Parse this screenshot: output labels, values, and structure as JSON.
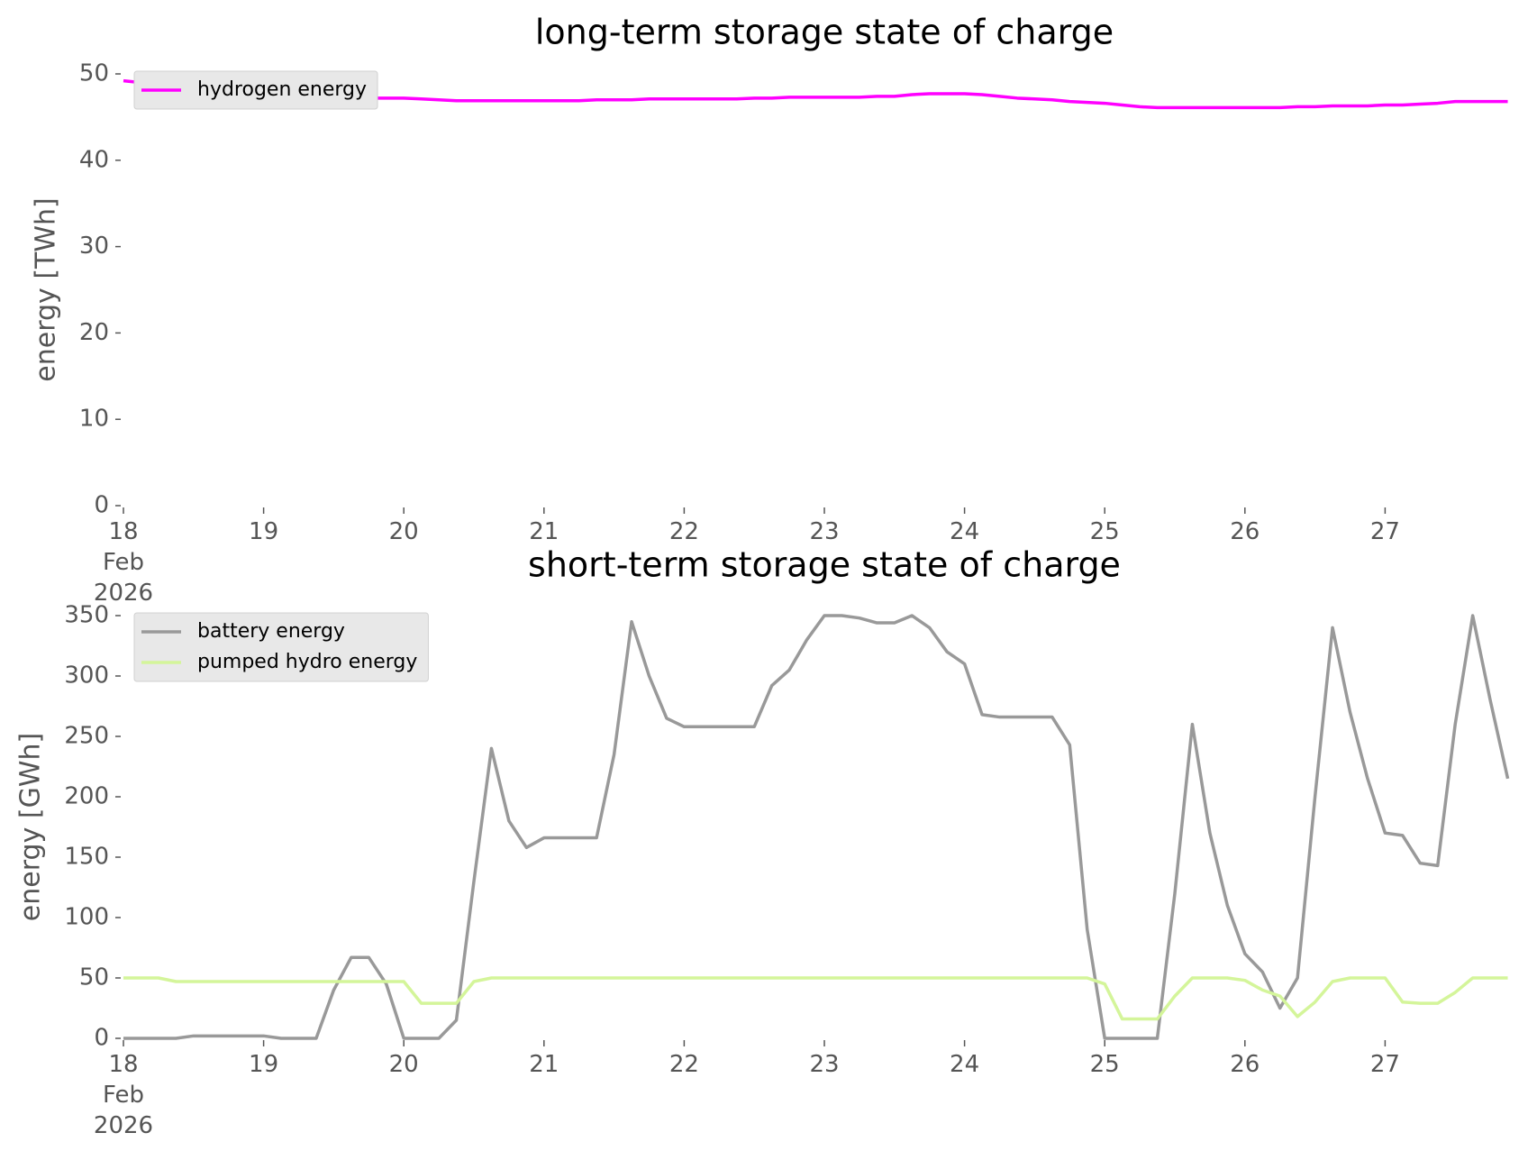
{
  "chart_data": [
    {
      "type": "line",
      "title": "long-term storage state of charge",
      "ylabel": "energy [TWh]",
      "legend": "upper left",
      "xlim": [
        "2026-02-18T00:00",
        "2026-02-28T00:00"
      ],
      "ylim": [
        0,
        50
      ],
      "yticks": [
        0,
        10,
        20,
        30,
        40,
        50
      ],
      "xticks": [
        {
          "value": "2026-02-18T00:00",
          "label": "18\nFeb\n2026"
        },
        {
          "value": "2026-02-19T00:00",
          "label": "19"
        },
        {
          "value": "2026-02-20T00:00",
          "label": "20"
        },
        {
          "value": "2026-02-21T00:00",
          "label": "21"
        },
        {
          "value": "2026-02-22T00:00",
          "label": "22"
        },
        {
          "value": "2026-02-23T00:00",
          "label": "23"
        },
        {
          "value": "2026-02-24T00:00",
          "label": "24"
        },
        {
          "value": "2026-02-25T00:00",
          "label": "25"
        },
        {
          "value": "2026-02-26T00:00",
          "label": "26"
        },
        {
          "value": "2026-02-27T00:00",
          "label": "27"
        }
      ],
      "x": [
        "2026-02-18T00:00",
        "2026-02-18T03:00",
        "2026-02-18T06:00",
        "2026-02-18T09:00",
        "2026-02-18T12:00",
        "2026-02-18T15:00",
        "2026-02-18T18:00",
        "2026-02-18T21:00",
        "2026-02-19T00:00",
        "2026-02-19T03:00",
        "2026-02-19T06:00",
        "2026-02-19T09:00",
        "2026-02-19T12:00",
        "2026-02-19T15:00",
        "2026-02-19T18:00",
        "2026-02-19T21:00",
        "2026-02-20T00:00",
        "2026-02-20T03:00",
        "2026-02-20T06:00",
        "2026-02-20T09:00",
        "2026-02-20T12:00",
        "2026-02-20T15:00",
        "2026-02-20T18:00",
        "2026-02-20T21:00",
        "2026-02-21T00:00",
        "2026-02-21T03:00",
        "2026-02-21T06:00",
        "2026-02-21T09:00",
        "2026-02-21T12:00",
        "2026-02-21T15:00",
        "2026-02-21T18:00",
        "2026-02-21T21:00",
        "2026-02-22T00:00",
        "2026-02-22T03:00",
        "2026-02-22T06:00",
        "2026-02-22T09:00",
        "2026-02-22T12:00",
        "2026-02-22T15:00",
        "2026-02-22T18:00",
        "2026-02-22T21:00",
        "2026-02-23T00:00",
        "2026-02-23T03:00",
        "2026-02-23T06:00",
        "2026-02-23T09:00",
        "2026-02-23T12:00",
        "2026-02-23T15:00",
        "2026-02-23T18:00",
        "2026-02-23T21:00",
        "2026-02-24T00:00",
        "2026-02-24T03:00",
        "2026-02-24T06:00",
        "2026-02-24T09:00",
        "2026-02-24T12:00",
        "2026-02-24T15:00",
        "2026-02-24T18:00",
        "2026-02-24T21:00",
        "2026-02-25T00:00",
        "2026-02-25T03:00",
        "2026-02-25T06:00",
        "2026-02-25T09:00",
        "2026-02-25T12:00",
        "2026-02-25T15:00",
        "2026-02-25T18:00",
        "2026-02-25T21:00",
        "2026-02-26T00:00",
        "2026-02-26T03:00",
        "2026-02-26T06:00",
        "2026-02-26T09:00",
        "2026-02-26T12:00",
        "2026-02-26T15:00",
        "2026-02-26T18:00",
        "2026-02-26T21:00",
        "2026-02-27T00:00",
        "2026-02-27T03:00",
        "2026-02-27T06:00",
        "2026-02-27T09:00",
        "2026-02-27T12:00",
        "2026-02-27T15:00",
        "2026-02-27T18:00",
        "2026-02-27T21:00"
      ],
      "series": [
        {
          "name": "hydrogen energy",
          "color": "#ff00ff",
          "values": [
            49.2,
            49.0,
            48.7,
            48.5,
            48.3,
            48.1,
            47.9,
            47.7,
            47.6,
            47.5,
            47.4,
            47.3,
            47.3,
            47.3,
            47.2,
            47.2,
            47.2,
            47.1,
            47.0,
            46.9,
            46.9,
            46.9,
            46.9,
            46.9,
            46.9,
            46.9,
            46.9,
            47.0,
            47.0,
            47.0,
            47.1,
            47.1,
            47.1,
            47.1,
            47.1,
            47.1,
            47.2,
            47.2,
            47.3,
            47.3,
            47.3,
            47.3,
            47.3,
            47.4,
            47.4,
            47.6,
            47.7,
            47.7,
            47.7,
            47.6,
            47.4,
            47.2,
            47.1,
            47.0,
            46.8,
            46.7,
            46.6,
            46.4,
            46.2,
            46.1,
            46.1,
            46.1,
            46.1,
            46.1,
            46.1,
            46.1,
            46.1,
            46.2,
            46.2,
            46.3,
            46.3,
            46.3,
            46.4,
            46.4,
            46.5,
            46.6,
            46.8,
            46.8,
            46.8,
            46.8
          ]
        }
      ]
    },
    {
      "type": "line",
      "title": "short-term storage state of charge",
      "ylabel": "energy [GWh]",
      "legend": "upper left",
      "xlim": [
        "2026-02-18T00:00",
        "2026-02-28T00:00"
      ],
      "ylim": [
        0,
        350
      ],
      "yticks": [
        0,
        50,
        100,
        150,
        200,
        250,
        300,
        350
      ],
      "xticks": [
        {
          "value": "2026-02-18T00:00",
          "label": "18\nFeb\n2026"
        },
        {
          "value": "2026-02-19T00:00",
          "label": "19"
        },
        {
          "value": "2026-02-20T00:00",
          "label": "20"
        },
        {
          "value": "2026-02-21T00:00",
          "label": "21"
        },
        {
          "value": "2026-02-22T00:00",
          "label": "22"
        },
        {
          "value": "2026-02-23T00:00",
          "label": "23"
        },
        {
          "value": "2026-02-24T00:00",
          "label": "24"
        },
        {
          "value": "2026-02-25T00:00",
          "label": "25"
        },
        {
          "value": "2026-02-26T00:00",
          "label": "26"
        },
        {
          "value": "2026-02-27T00:00",
          "label": "27"
        }
      ],
      "x": [
        "2026-02-18T00:00",
        "2026-02-18T03:00",
        "2026-02-18T06:00",
        "2026-02-18T09:00",
        "2026-02-18T12:00",
        "2026-02-18T15:00",
        "2026-02-18T18:00",
        "2026-02-18T21:00",
        "2026-02-19T00:00",
        "2026-02-19T03:00",
        "2026-02-19T06:00",
        "2026-02-19T09:00",
        "2026-02-19T12:00",
        "2026-02-19T15:00",
        "2026-02-19T18:00",
        "2026-02-19T21:00",
        "2026-02-20T00:00",
        "2026-02-20T03:00",
        "2026-02-20T06:00",
        "2026-02-20T09:00",
        "2026-02-20T12:00",
        "2026-02-20T15:00",
        "2026-02-20T18:00",
        "2026-02-20T21:00",
        "2026-02-21T00:00",
        "2026-02-21T03:00",
        "2026-02-21T06:00",
        "2026-02-21T09:00",
        "2026-02-21T12:00",
        "2026-02-21T15:00",
        "2026-02-21T18:00",
        "2026-02-21T21:00",
        "2026-02-22T00:00",
        "2026-02-22T03:00",
        "2026-02-22T06:00",
        "2026-02-22T09:00",
        "2026-02-22T12:00",
        "2026-02-22T15:00",
        "2026-02-22T18:00",
        "2026-02-22T21:00",
        "2026-02-23T00:00",
        "2026-02-23T03:00",
        "2026-02-23T06:00",
        "2026-02-23T09:00",
        "2026-02-23T12:00",
        "2026-02-23T15:00",
        "2026-02-23T18:00",
        "2026-02-23T21:00",
        "2026-02-24T00:00",
        "2026-02-24T03:00",
        "2026-02-24T06:00",
        "2026-02-24T09:00",
        "2026-02-24T12:00",
        "2026-02-24T15:00",
        "2026-02-24T18:00",
        "2026-02-24T21:00",
        "2026-02-25T00:00",
        "2026-02-25T03:00",
        "2026-02-25T06:00",
        "2026-02-25T09:00",
        "2026-02-25T12:00",
        "2026-02-25T15:00",
        "2026-02-25T18:00",
        "2026-02-25T21:00",
        "2026-02-26T00:00",
        "2026-02-26T03:00",
        "2026-02-26T06:00",
        "2026-02-26T09:00",
        "2026-02-26T12:00",
        "2026-02-26T15:00",
        "2026-02-26T18:00",
        "2026-02-26T21:00",
        "2026-02-27T00:00",
        "2026-02-27T03:00",
        "2026-02-27T06:00",
        "2026-02-27T09:00",
        "2026-02-27T12:00",
        "2026-02-27T15:00",
        "2026-02-27T18:00",
        "2026-02-27T21:00"
      ],
      "series": [
        {
          "name": "battery energy",
          "color": "#999999",
          "values": [
            0,
            0,
            0,
            0,
            2,
            2,
            2,
            2,
            2,
            0,
            0,
            0,
            40,
            67,
            67,
            45,
            0,
            0,
            0,
            15,
            130,
            240,
            180,
            158,
            166,
            166,
            166,
            166,
            235,
            345,
            300,
            265,
            258,
            258,
            258,
            258,
            258,
            292,
            305,
            330,
            350,
            350,
            348,
            344,
            344,
            350,
            340,
            320,
            310,
            268,
            266,
            266,
            266,
            266,
            243,
            90,
            0,
            0,
            0,
            0,
            120,
            260,
            170,
            110,
            70,
            55,
            25,
            50,
            200,
            340,
            270,
            215,
            170,
            168,
            145,
            143,
            260,
            350,
            280,
            215
          ]
        },
        {
          "name": "pumped hydro energy",
          "color": "#d4f59a",
          "values": [
            50,
            50,
            50,
            47,
            47,
            47,
            47,
            47,
            47,
            47,
            47,
            47,
            47,
            47,
            47,
            47,
            47,
            29,
            29,
            29,
            47,
            50,
            50,
            50,
            50,
            50,
            50,
            50,
            50,
            50,
            50,
            50,
            50,
            50,
            50,
            50,
            50,
            50,
            50,
            50,
            50,
            50,
            50,
            50,
            50,
            50,
            50,
            50,
            50,
            50,
            50,
            50,
            50,
            50,
            50,
            50,
            45,
            16,
            16,
            16,
            35,
            50,
            50,
            50,
            48,
            40,
            35,
            18,
            30,
            47,
            50,
            50,
            50,
            30,
            29,
            29,
            38,
            50,
            50,
            50
          ]
        }
      ]
    }
  ]
}
